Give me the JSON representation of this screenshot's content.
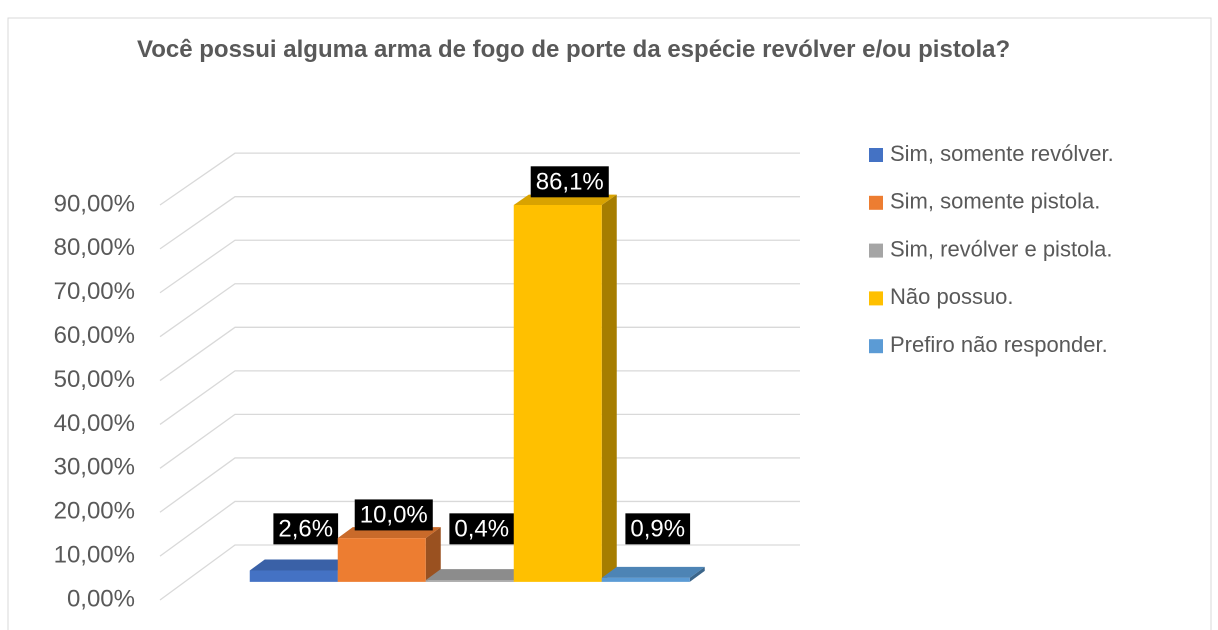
{
  "chart_data": {
    "type": "bar3d",
    "title": "Você possui alguma arma de fogo de porte da espécie revólver e/ou pistola?",
    "series": [
      {
        "name": "Sim, somente revólver.",
        "color": "#4472c4",
        "values": [
          2.6
        ],
        "value_labels": [
          "2,6%"
        ]
      },
      {
        "name": "Sim, somente pistola.",
        "color": "#ed7d31",
        "values": [
          10.0
        ],
        "value_labels": [
          "10,0%"
        ]
      },
      {
        "name": "Sim, revólver e pistola.",
        "color": "#a5a5a5",
        "values": [
          0.4
        ],
        "value_labels": [
          "0,4%"
        ]
      },
      {
        "name": "Não possuo.",
        "color": "#ffc000",
        "values": [
          86.1
        ],
        "value_labels": [
          "86,1%"
        ]
      },
      {
        "name": "Prefiro não responder.",
        "color": "#5b9bd5",
        "values": [
          0.9
        ],
        "value_labels": [
          "0,9%"
        ]
      }
    ],
    "ylim": [
      0,
      90
    ],
    "yticks": [
      {
        "value": 0,
        "label": "0,00%"
      },
      {
        "value": 10,
        "label": "10,00%"
      },
      {
        "value": 20,
        "label": "20,00%"
      },
      {
        "value": 30,
        "label": "30,00%"
      },
      {
        "value": 40,
        "label": "40,00%"
      },
      {
        "value": 50,
        "label": "50,00%"
      },
      {
        "value": 60,
        "label": "60,00%"
      },
      {
        "value": 70,
        "label": "70,00%"
      },
      {
        "value": 80,
        "label": "80,00%"
      },
      {
        "value": 90,
        "label": "90,00%"
      }
    ],
    "grid": true,
    "legend": "right"
  }
}
